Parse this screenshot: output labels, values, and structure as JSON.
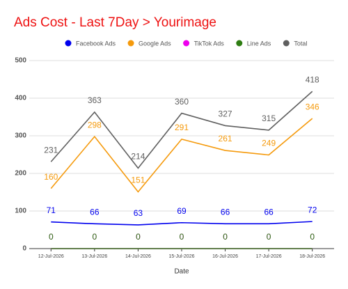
{
  "chart_data": {
    "type": "line",
    "title": "Ads Cost - Last 7Day > Yourimage",
    "x_label": "Date",
    "categories": [
      "12-Jul-2026",
      "13-Jul-2026",
      "14-Jul-2026",
      "15-Jul-2026",
      "16-Jul-2026",
      "17-Jul-2026",
      "18-Jul-2026"
    ],
    "series": [
      {
        "name": "Facebook Ads",
        "color": "#0000ee",
        "values": [
          71,
          66,
          63,
          69,
          66,
          66,
          72
        ]
      },
      {
        "name": "Google Ads",
        "color": "#f59a0c",
        "values": [
          160,
          298,
          151,
          291,
          261,
          249,
          346
        ]
      },
      {
        "name": "TikTok Ads",
        "color": "#ee00ee",
        "values": [
          0,
          0,
          0,
          0,
          0,
          0,
          0
        ]
      },
      {
        "name": "Line Ads",
        "color": "#2e7d12",
        "values": [
          0,
          0,
          0,
          0,
          0,
          0,
          0
        ]
      },
      {
        "name": "Total",
        "color": "#5f5f5f",
        "values": [
          231,
          363,
          214,
          360,
          327,
          315,
          418
        ]
      }
    ],
    "ylim": [
      0,
      500
    ],
    "yticks": [
      0,
      100,
      200,
      300,
      400,
      500
    ],
    "grid": true,
    "legend": "top"
  }
}
